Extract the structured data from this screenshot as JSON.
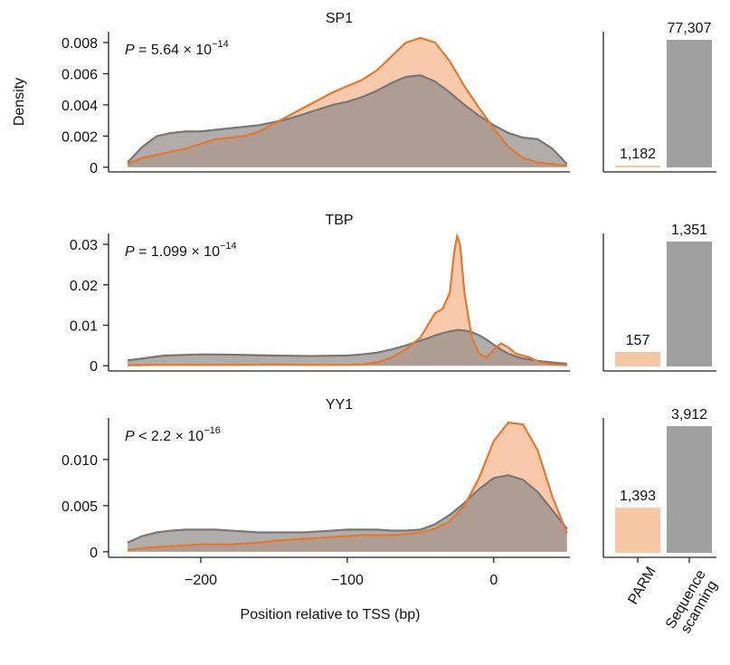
{
  "chart_data": [
    {
      "type": "area",
      "title": "SP1",
      "ylabel": "Density",
      "annotation": {
        "symbol": "P",
        "text": " = 5.64 × 10",
        "exponent": "−14"
      },
      "x": [
        -250,
        -240,
        -230,
        -220,
        -210,
        -200,
        -190,
        -180,
        -170,
        -160,
        -150,
        -140,
        -130,
        -120,
        -110,
        -100,
        -90,
        -80,
        -70,
        -60,
        -50,
        -40,
        -30,
        -20,
        -10,
        0,
        10,
        20,
        30,
        40,
        50
      ],
      "series": [
        {
          "color": "#e8772e",
          "fill": "#f7c19c",
          "values": [
            0.0002,
            0.0006,
            0.0008,
            0.001,
            0.0012,
            0.0015,
            0.0018,
            0.0019,
            0.002,
            0.0023,
            0.0028,
            0.0033,
            0.0038,
            0.0043,
            0.0048,
            0.0052,
            0.0056,
            0.0062,
            0.0071,
            0.008,
            0.0083,
            0.008,
            0.0068,
            0.0052,
            0.0038,
            0.0025,
            0.0013,
            0.0006,
            0.0003,
            0.0002,
            0.0001
          ]
        },
        {
          "color": "#777777",
          "fill": "#8f8a88",
          "values": [
            0.0003,
            0.0013,
            0.002,
            0.0022,
            0.0023,
            0.0023,
            0.0024,
            0.0025,
            0.0026,
            0.0027,
            0.0029,
            0.0031,
            0.0034,
            0.0037,
            0.004,
            0.0042,
            0.0045,
            0.0049,
            0.0054,
            0.0058,
            0.0059,
            0.0055,
            0.0048,
            0.004,
            0.0033,
            0.0027,
            0.0022,
            0.0019,
            0.0018,
            0.0012,
            0.0002
          ]
        }
      ],
      "xlim": [
        -263,
        52
      ],
      "ylim": [
        -0.0003,
        0.0087
      ],
      "yticks": [
        0,
        0.002,
        0.004,
        0.006,
        0.008
      ]
    },
    {
      "type": "bar",
      "categories": [
        null,
        null
      ],
      "values": [
        1182,
        77307
      ],
      "value_labels": [
        "1,182",
        "77,307"
      ],
      "colors": [
        "#f7c6a3",
        "#a0a0a0"
      ]
    },
    {
      "type": "area",
      "title": "TBP",
      "annotation": {
        "symbol": "P",
        "text": " = 1.099 × 10",
        "exponent": "−14"
      },
      "x": [
        -250,
        -225,
        -200,
        -175,
        -150,
        -125,
        -100,
        -90,
        -80,
        -70,
        -60,
        -50,
        -45,
        -40,
        -35,
        -30,
        -27,
        -25,
        -23,
        -20,
        -15,
        -10,
        -5,
        0,
        5,
        10,
        15,
        20,
        25,
        30,
        40,
        50
      ],
      "series": [
        {
          "color": "#e8772e",
          "fill": "#f7c19c",
          "values": [
            0.0001,
            0.0002,
            0.0002,
            0.0002,
            0.0003,
            0.0002,
            0.0002,
            0.0003,
            0.0008,
            0.002,
            0.004,
            0.007,
            0.01,
            0.013,
            0.014,
            0.018,
            0.028,
            0.032,
            0.03,
            0.018,
            0.007,
            0.003,
            0.002,
            0.004,
            0.0055,
            0.0045,
            0.003,
            0.0025,
            0.002,
            0.001,
            0.0003,
            0.0001
          ]
        },
        {
          "color": "#777777",
          "fill": "#8f8a88",
          "values": [
            0.0013,
            0.0025,
            0.0028,
            0.0027,
            0.0025,
            0.0024,
            0.0025,
            0.0028,
            0.0032,
            0.004,
            0.005,
            0.0062,
            0.0068,
            0.0075,
            0.008,
            0.0085,
            0.0087,
            0.0088,
            0.0088,
            0.0087,
            0.0083,
            0.0075,
            0.0065,
            0.0052,
            0.004,
            0.003,
            0.0023,
            0.0018,
            0.0015,
            0.0012,
            0.0008,
            0.0005
          ]
        }
      ],
      "xlim": [
        -263,
        52
      ],
      "ylim": [
        -0.0013,
        0.0327
      ],
      "yticks": [
        0,
        0.01,
        0.02,
        0.03
      ]
    },
    {
      "type": "bar",
      "categories": [
        null,
        null
      ],
      "values": [
        157,
        1351
      ],
      "value_labels": [
        "157",
        "1,351"
      ],
      "colors": [
        "#f7c6a3",
        "#a0a0a0"
      ]
    },
    {
      "type": "area",
      "title": "YY1",
      "xlabel": "Position relative to TSS (bp)",
      "annotation": {
        "symbol": "P",
        "text": " < 2.2 × 10",
        "exponent": "−16"
      },
      "x": [
        -250,
        -240,
        -230,
        -220,
        -210,
        -200,
        -190,
        -180,
        -170,
        -160,
        -150,
        -140,
        -130,
        -120,
        -110,
        -100,
        -90,
        -80,
        -70,
        -60,
        -50,
        -40,
        -30,
        -20,
        -10,
        0,
        10,
        20,
        30,
        40,
        50
      ],
      "series": [
        {
          "color": "#e8772e",
          "fill": "#f7c19c",
          "values": [
            0.0002,
            0.0004,
            0.0005,
            0.0006,
            0.0007,
            0.0008,
            0.0008,
            0.0008,
            0.0009,
            0.001,
            0.0012,
            0.0013,
            0.0014,
            0.0015,
            0.0016,
            0.0017,
            0.0018,
            0.0018,
            0.0018,
            0.0019,
            0.0021,
            0.0025,
            0.0033,
            0.005,
            0.008,
            0.012,
            0.014,
            0.0138,
            0.011,
            0.006,
            0.002
          ]
        },
        {
          "color": "#777777",
          "fill": "#8f8a88",
          "values": [
            0.001,
            0.0017,
            0.0021,
            0.0023,
            0.0024,
            0.0024,
            0.0024,
            0.0023,
            0.0022,
            0.0021,
            0.0021,
            0.0021,
            0.0021,
            0.0022,
            0.0023,
            0.0024,
            0.0024,
            0.0024,
            0.0023,
            0.0023,
            0.0024,
            0.003,
            0.004,
            0.0053,
            0.0068,
            0.008,
            0.0083,
            0.0078,
            0.0065,
            0.0045,
            0.0025
          ]
        }
      ],
      "xlim": [
        -263,
        52
      ],
      "ylim": [
        -0.0006,
        0.0145
      ],
      "xticks": [
        {
          "value": -200,
          "label": "−200"
        },
        {
          "value": -100,
          "label": "−100"
        },
        0
      ],
      "yticks": [
        0,
        0.005,
        {
          "value": 0.01,
          "label": "0.010"
        }
      ]
    },
    {
      "type": "bar",
      "categories": [
        "PARM",
        "Sequence scanning"
      ],
      "values": [
        1393,
        3912
      ],
      "value_labels": [
        "1,393",
        "3,912"
      ],
      "colors": [
        "#f7c6a3",
        "#a0a0a0"
      ]
    }
  ]
}
